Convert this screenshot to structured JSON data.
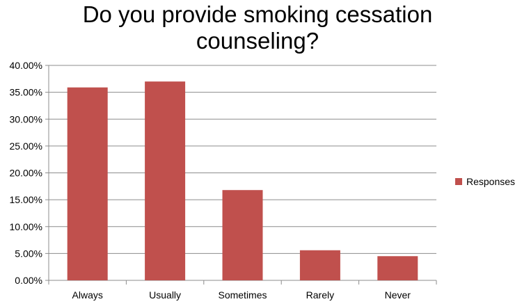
{
  "chart_data": {
    "type": "bar",
    "title_lines": [
      "Do you provide smoking cessation",
      "counseling?"
    ],
    "categories": [
      "Always",
      "Usually",
      "Sometimes",
      "Rarely",
      "Never"
    ],
    "series": [
      {
        "name": "Responses",
        "values": [
          0.359,
          0.37,
          0.168,
          0.056,
          0.045
        ],
        "color": "#C0504D"
      }
    ],
    "ylim": [
      0,
      0.4
    ],
    "y_ticks": [
      0,
      0.05,
      0.1,
      0.15,
      0.2,
      0.25,
      0.3,
      0.35,
      0.4
    ],
    "y_tick_labels": [
      "0.00%",
      "5.00%",
      "10.00%",
      "15.00%",
      "20.00%",
      "25.00%",
      "30.00%",
      "35.00%",
      "40.00%"
    ],
    "grid": true,
    "legend_position": "right",
    "xlabel": "",
    "ylabel": ""
  }
}
